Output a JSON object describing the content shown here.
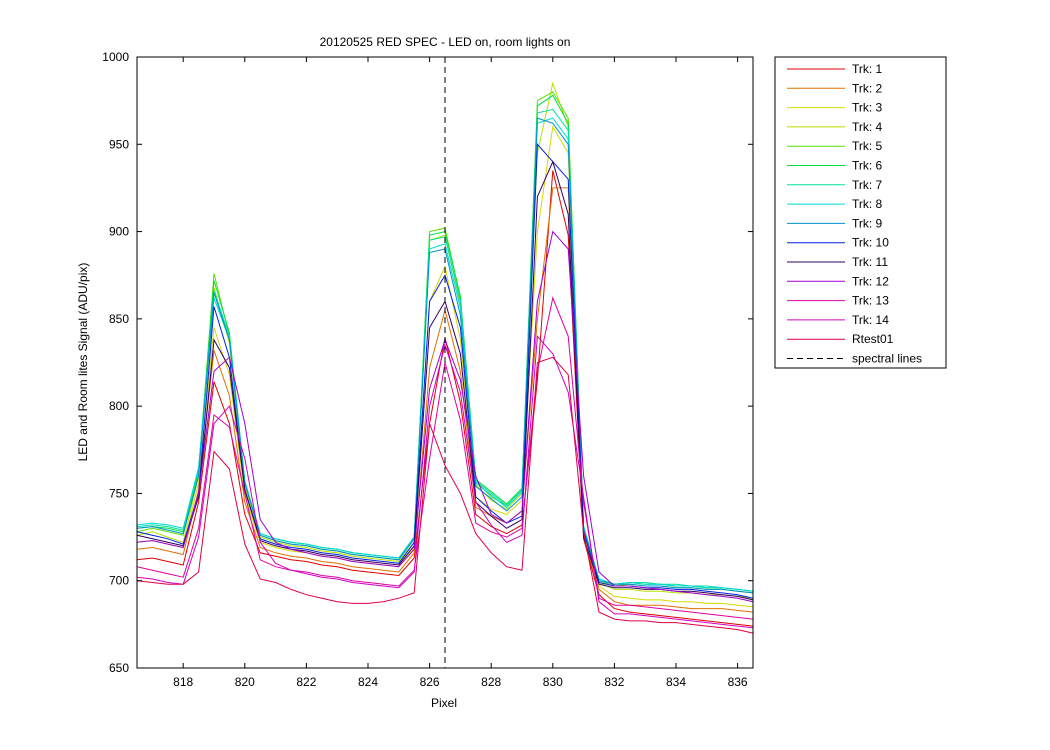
{
  "chart_data": {
    "type": "line",
    "title": "20120525 RED SPEC - LED on, room lights on",
    "xlabel": "Pixel",
    "ylabel": "LED and Room lites Signal (ADU/pix)",
    "xlim": [
      816.5,
      836.5
    ],
    "ylim": [
      650,
      1000
    ],
    "xticks": [
      818,
      820,
      822,
      824,
      826,
      828,
      830,
      832,
      834,
      836
    ],
    "yticks": [
      650,
      700,
      750,
      800,
      850,
      900,
      950,
      1000
    ],
    "grid": false,
    "legend_position": "outside-right",
    "x": [
      816.5,
      817,
      817.5,
      818,
      818.5,
      819,
      819.5,
      820,
      820.5,
      821,
      821.5,
      822,
      822.5,
      823,
      823.5,
      824,
      824.5,
      825,
      825.5,
      826,
      826.5,
      827,
      827.5,
      828,
      828.5,
      829,
      829.5,
      830,
      830.5,
      831,
      831.5,
      832,
      832.5,
      833,
      833.5,
      834,
      834.5,
      835,
      835.5,
      836,
      836.5
    ],
    "series": [
      {
        "name": "Trk: 1",
        "color": "#e00000",
        "values": [
          712,
          713,
          711,
          709,
          745,
          814,
          790,
          738,
          716,
          714,
          712,
          711,
          709,
          708,
          706,
          705,
          704,
          703,
          713,
          790,
          839,
          802,
          738,
          731,
          727,
          732,
          815,
          935,
          898,
          724,
          692,
          684,
          682,
          681,
          680,
          679,
          678,
          677,
          676,
          675,
          674
        ]
      },
      {
        "name": "Trk: 2",
        "color": "#e07000",
        "values": [
          718,
          719,
          717,
          715,
          752,
          832,
          806,
          745,
          719,
          716,
          714,
          713,
          711,
          710,
          708,
          707,
          706,
          705,
          716,
          822,
          855,
          820,
          742,
          737,
          733,
          740,
          850,
          925,
          925,
          725,
          695,
          688,
          686,
          686,
          686,
          685,
          684,
          684,
          684,
          683,
          682
        ]
      },
      {
        "name": "Trk: 3",
        "color": "#d8d800",
        "values": [
          722,
          723,
          721,
          719,
          756,
          845,
          818,
          749,
          722,
          719,
          717,
          716,
          714,
          713,
          711,
          710,
          709,
          708,
          719,
          860,
          880,
          838,
          748,
          741,
          738,
          746,
          900,
          960,
          945,
          728,
          697,
          691,
          690,
          689,
          689,
          688,
          688,
          687,
          687,
          686,
          685
        ]
      },
      {
        "name": "Trk: 4",
        "color": "#b8e000",
        "values": [
          726,
          728,
          725,
          722,
          760,
          868,
          836,
          754,
          725,
          722,
          720,
          719,
          717,
          716,
          714,
          713,
          712,
          711,
          722,
          895,
          898,
          858,
          755,
          746,
          741,
          750,
          945,
          985,
          960,
          730,
          699,
          695,
          695,
          694,
          694,
          693,
          693,
          692,
          692,
          691,
          690
        ]
      },
      {
        "name": "Trk: 5",
        "color": "#58e000",
        "values": [
          728,
          730,
          728,
          726,
          762,
          876,
          840,
          756,
          726,
          723,
          721,
          720,
          718,
          717,
          715,
          714,
          713,
          712,
          724,
          900,
          902,
          862,
          757,
          748,
          743,
          752,
          975,
          980,
          965,
          731,
          700,
          697,
          698,
          697,
          697,
          696,
          696,
          695,
          695,
          694,
          693
        ]
      },
      {
        "name": "Trk: 6",
        "color": "#00e040",
        "values": [
          730,
          731,
          730,
          728,
          763,
          872,
          842,
          757,
          727,
          724,
          722,
          721,
          719,
          718,
          716,
          715,
          714,
          713,
          725,
          898,
          900,
          863,
          758,
          751,
          744,
          753,
          972,
          978,
          962,
          731,
          701,
          698,
          699,
          698,
          698,
          697,
          697,
          696,
          696,
          695,
          694
        ]
      },
      {
        "name": "Trk: 7",
        "color": "#00e0a0",
        "values": [
          731,
          732,
          731,
          729,
          764,
          866,
          840,
          757,
          727,
          724,
          722,
          721,
          719,
          718,
          716,
          715,
          714,
          713,
          725,
          895,
          897,
          860,
          757,
          750,
          743,
          752,
          968,
          970,
          958,
          731,
          701,
          698,
          699,
          699,
          698,
          698,
          697,
          697,
          696,
          695,
          694
        ]
      },
      {
        "name": "Trk: 8",
        "color": "#00d8d8",
        "values": [
          732,
          733,
          732,
          730,
          765,
          862,
          838,
          757,
          727,
          724,
          722,
          721,
          719,
          718,
          716,
          715,
          714,
          713,
          725,
          890,
          893,
          856,
          756,
          749,
          742,
          751,
          962,
          965,
          953,
          730,
          701,
          698,
          699,
          698,
          698,
          697,
          697,
          696,
          696,
          695,
          694
        ]
      },
      {
        "name": "Trk: 9",
        "color": "#0090d0",
        "values": [
          730,
          731,
          729,
          727,
          760,
          865,
          838,
          756,
          726,
          723,
          721,
          720,
          718,
          717,
          715,
          714,
          713,
          712,
          724,
          888,
          890,
          852,
          754,
          747,
          740,
          748,
          965,
          962,
          950,
          730,
          700,
          698,
          698,
          697,
          697,
          696,
          696,
          695,
          695,
          694,
          693
        ]
      },
      {
        "name": "Trk: 10",
        "color": "#0020e0",
        "values": [
          728,
          726,
          724,
          721,
          750,
          857,
          828,
          752,
          724,
          721,
          719,
          718,
          716,
          715,
          713,
          712,
          711,
          710,
          722,
          860,
          875,
          845,
          748,
          740,
          733,
          737,
          950,
          940,
          930,
          728,
          699,
          697,
          697,
          696,
          696,
          695,
          695,
          694,
          693,
          692,
          690
        ]
      },
      {
        "name": "Trk: 11",
        "color": "#300060",
        "values": [
          726,
          724,
          722,
          720,
          748,
          838,
          822,
          752,
          723,
          720,
          718,
          717,
          715,
          714,
          712,
          711,
          710,
          709,
          720,
          845,
          860,
          830,
          745,
          737,
          730,
          735,
          920,
          940,
          910,
          725,
          698,
          696,
          696,
          695,
          695,
          694,
          694,
          693,
          692,
          691,
          689
        ]
      },
      {
        "name": "Trk: 12",
        "color": "#a000d0",
        "values": [
          722,
          723,
          721,
          719,
          750,
          820,
          828,
          790,
          735,
          722,
          718,
          716,
          714,
          713,
          711,
          710,
          709,
          708,
          718,
          810,
          838,
          815,
          760,
          738,
          733,
          740,
          860,
          900,
          890,
          760,
          705,
          697,
          697,
          696,
          695,
          694,
          693,
          692,
          691,
          690,
          688
        ]
      },
      {
        "name": "Trk: 13",
        "color": "#e000a0",
        "values": [
          708,
          706,
          704,
          702,
          730,
          795,
          788,
          750,
          712,
          708,
          706,
          705,
          703,
          702,
          700,
          699,
          698,
          697,
          706,
          770,
          825,
          792,
          733,
          728,
          725,
          730,
          820,
          862,
          840,
          745,
          690,
          686,
          686,
          685,
          684,
          683,
          682,
          681,
          680,
          679,
          678
        ]
      },
      {
        "name": "Trk: 14",
        "color": "#d000c0",
        "values": [
          702,
          701,
          699,
          698,
          725,
          790,
          800,
          770,
          722,
          710,
          706,
          704,
          702,
          701,
          699,
          698,
          697,
          696,
          705,
          800,
          835,
          808,
          745,
          732,
          722,
          726,
          840,
          830,
          808,
          748,
          688,
          681,
          681,
          680,
          679,
          678,
          677,
          676,
          675,
          674,
          673
        ]
      },
      {
        "name": "Rtest01",
        "color": "#e00040",
        "values": [
          700,
          699,
          698,
          698,
          705,
          774,
          764,
          721,
          701,
          699,
          695,
          692,
          690,
          688,
          687,
          687,
          688,
          690,
          693,
          790,
          766,
          750,
          727,
          716,
          708,
          706,
          825,
          828,
          818,
          728,
          682,
          678,
          677,
          677,
          676,
          676,
          675,
          674,
          673,
          672,
          670
        ]
      }
    ],
    "vlines": [
      {
        "name": "spectral lines",
        "x": 826.5,
        "style": "dashed",
        "color": "#000000"
      }
    ]
  }
}
